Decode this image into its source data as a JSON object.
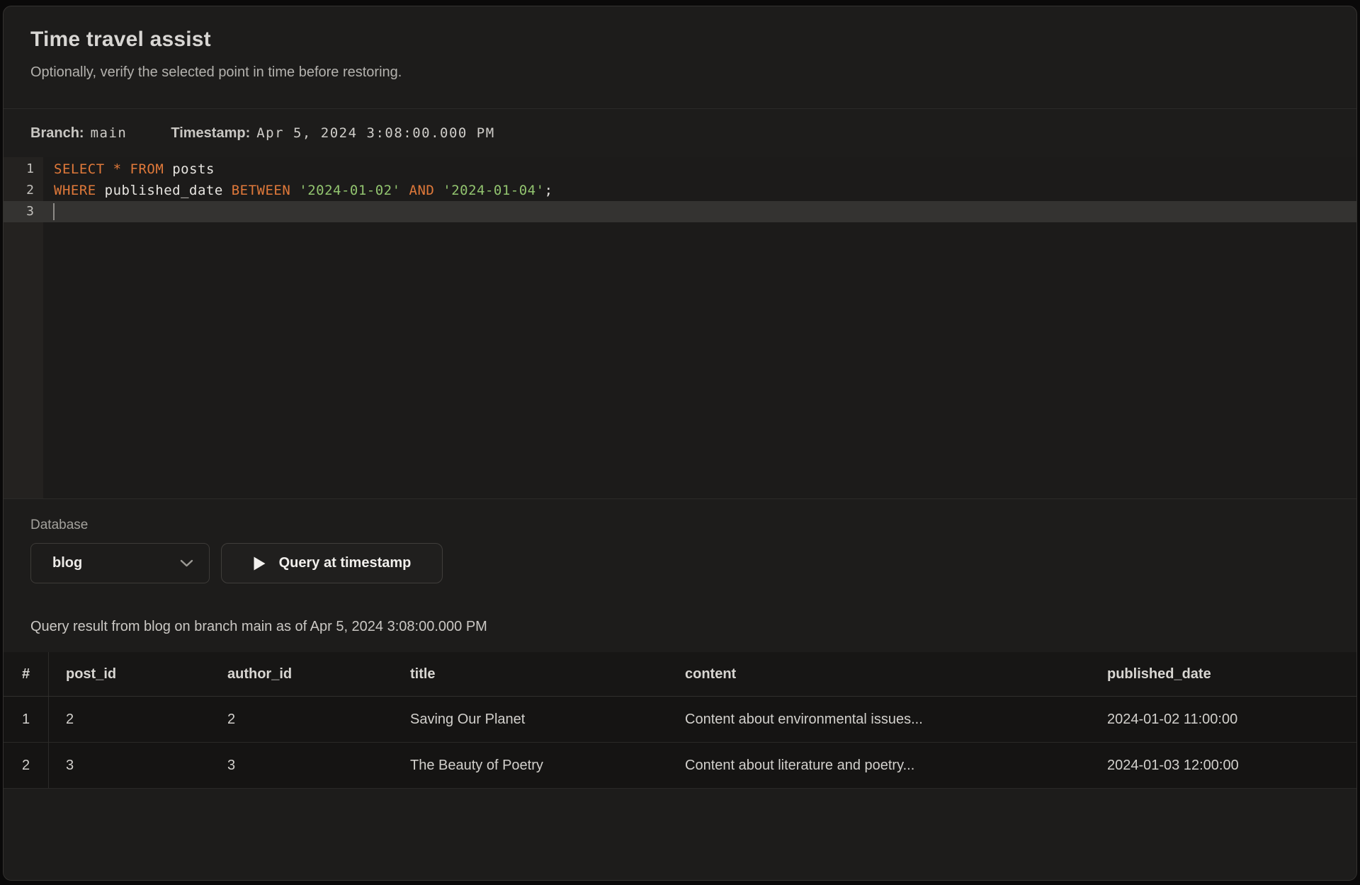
{
  "dialog": {
    "title": "Time travel assist",
    "subtitle": "Optionally, verify the selected point in time before restoring."
  },
  "meta": {
    "branch_label": "Branch:",
    "branch_value": "main",
    "timestamp_label": "Timestamp:",
    "timestamp_value": "Apr 5, 2024 3:08:00.000 PM"
  },
  "editor": {
    "lines": [
      {
        "number": "1",
        "active": false,
        "cursor": false,
        "tokens": [
          [
            "SELECT",
            "kw"
          ],
          [
            " ",
            "pl"
          ],
          [
            "*",
            "kw"
          ],
          [
            " ",
            "pl"
          ],
          [
            "FROM",
            "kw"
          ],
          [
            " posts",
            "pl"
          ]
        ]
      },
      {
        "number": "2",
        "active": false,
        "cursor": false,
        "tokens": [
          [
            "WHERE",
            "kw"
          ],
          [
            " published_date ",
            "pl"
          ],
          [
            "BETWEEN",
            "kw"
          ],
          [
            " ",
            "pl"
          ],
          [
            "'2024-01-02'",
            "str"
          ],
          [
            " ",
            "pl"
          ],
          [
            "AND",
            "kw"
          ],
          [
            " ",
            "pl"
          ],
          [
            "'2024-01-04'",
            "str"
          ],
          [
            ";",
            "pl"
          ]
        ]
      },
      {
        "number": "3",
        "active": true,
        "cursor": true,
        "tokens": []
      }
    ]
  },
  "controls": {
    "database_label": "Database",
    "database_value": "blog",
    "query_button_label": "Query at timestamp"
  },
  "result": {
    "caption": "Query result from blog on branch main as of Apr 5, 2024 3:08:00.000 PM",
    "table": {
      "columns": [
        "#",
        "post_id",
        "author_id",
        "title",
        "content",
        "published_date"
      ],
      "rows": [
        [
          "1",
          "2",
          "2",
          "Saving Our Planet",
          "Content about environmental issues...",
          "2024-01-02 11:00:00"
        ],
        [
          "2",
          "3",
          "3",
          "The Beauty of Poetry",
          "Content about literature and poetry...",
          "2024-01-03 12:00:00"
        ]
      ]
    }
  },
  "colors": {
    "sql-keyword": "#e0793a",
    "sql-string": "#92c46f",
    "sql-plain": "#e7e5e1",
    "line-highlight": "#343331",
    "panel-bg": "#1d1c1b",
    "table-bg": "#151413"
  }
}
